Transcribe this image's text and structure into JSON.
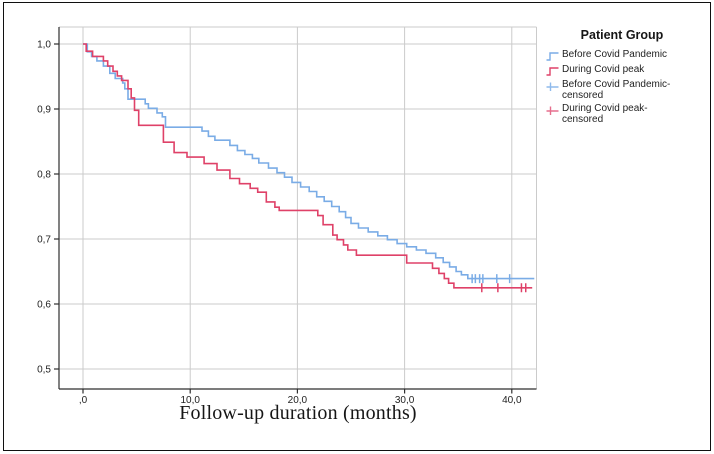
{
  "figure": {
    "kind": "kaplan-meier-survival-plot"
  },
  "legend": {
    "title": "Patient Group",
    "items": [
      {
        "id": "before-covid-pandemic",
        "label": "Before Covid Pandemic",
        "marker": "step-line",
        "color": "#7AACE6"
      },
      {
        "id": "during-covid-peak",
        "label": "During Covid peak",
        "marker": "step-line",
        "color": "#DF4168"
      },
      {
        "id": "before-covid-pandemic-censored",
        "label": "Before Covid Pandemic-censored",
        "marker": "plus",
        "color": "#8FBAEC"
      },
      {
        "id": "during-covid-peak-censored",
        "label": "During Covid peak-censored",
        "marker": "plus",
        "color": "#E66E8D"
      }
    ]
  },
  "chart_data": {
    "type": "line",
    "subtype": "kaplan-meier-step",
    "title": "",
    "xlabel": "Follow-up duration (months)",
    "ylabel": "",
    "xlim": [
      -2.2,
      42.4
    ],
    "ylim": [
      0.47,
      1.03
    ],
    "grid": true,
    "legend_position": "right",
    "x_ticks": [
      0,
      10,
      20,
      30,
      40
    ],
    "x_tick_labels": [
      ",0",
      "10,0",
      "20,0",
      "30,0",
      "40,0"
    ],
    "y_ticks": [
      1.0,
      0.9,
      0.8,
      0.7,
      0.6,
      0.5
    ],
    "y_tick_labels": [
      "1,0",
      "0,9",
      "0,8",
      "0,7",
      "0,6",
      "0,5"
    ],
    "colors": {
      "grid": "#CBCBCB",
      "axis": "#2E2E2E",
      "tick_text": "#232323"
    },
    "series": [
      {
        "id": "before-covid-pandemic",
        "name": "Before Covid Pandemic",
        "color": "#7AACE6",
        "end_x": 42.1,
        "points": [
          [
            0,
            1.0
          ],
          [
            0.4,
            0.988
          ],
          [
            0.8,
            0.981
          ],
          [
            1.3,
            0.974
          ],
          [
            1.9,
            0.966
          ],
          [
            2.5,
            0.955
          ],
          [
            3.0,
            0.947
          ],
          [
            3.7,
            0.94
          ],
          [
            3.9,
            0.931
          ],
          [
            4.2,
            0.915
          ],
          [
            5.8,
            0.908
          ],
          [
            6.1,
            0.901
          ],
          [
            6.9,
            0.894
          ],
          [
            7.4,
            0.888
          ],
          [
            7.7,
            0.872
          ],
          [
            11.1,
            0.866
          ],
          [
            11.7,
            0.858
          ],
          [
            12.3,
            0.852
          ],
          [
            13.7,
            0.844
          ],
          [
            14.4,
            0.836
          ],
          [
            15.1,
            0.83
          ],
          [
            15.8,
            0.824
          ],
          [
            16.4,
            0.817
          ],
          [
            17.3,
            0.809
          ],
          [
            18.1,
            0.802
          ],
          [
            18.8,
            0.795
          ],
          [
            19.5,
            0.787
          ],
          [
            20.3,
            0.78
          ],
          [
            21.1,
            0.773
          ],
          [
            21.8,
            0.765
          ],
          [
            22.5,
            0.758
          ],
          [
            23.2,
            0.75
          ],
          [
            23.9,
            0.742
          ],
          [
            24.5,
            0.733
          ],
          [
            25.0,
            0.724
          ],
          [
            25.7,
            0.717
          ],
          [
            26.6,
            0.711
          ],
          [
            27.5,
            0.705
          ],
          [
            28.4,
            0.699
          ],
          [
            29.3,
            0.693
          ],
          [
            30.2,
            0.688
          ],
          [
            31.1,
            0.683
          ],
          [
            32.0,
            0.678
          ],
          [
            32.9,
            0.671
          ],
          [
            33.6,
            0.664
          ],
          [
            34.2,
            0.657
          ],
          [
            34.8,
            0.65
          ],
          [
            35.3,
            0.645
          ],
          [
            35.9,
            0.639
          ]
        ],
        "censored": [
          [
            36.3,
            0.639
          ],
          [
            36.6,
            0.639
          ],
          [
            37.0,
            0.639
          ],
          [
            37.3,
            0.639
          ],
          [
            38.6,
            0.639
          ],
          [
            39.8,
            0.639
          ]
        ]
      },
      {
        "id": "during-covid-peak",
        "name": "During Covid peak",
        "color": "#DF4168",
        "end_x": 41.9,
        "points": [
          [
            0,
            1.0
          ],
          [
            0.3,
            0.989
          ],
          [
            0.9,
            0.981
          ],
          [
            1.9,
            0.974
          ],
          [
            2.3,
            0.966
          ],
          [
            2.8,
            0.958
          ],
          [
            3.2,
            0.951
          ],
          [
            3.6,
            0.944
          ],
          [
            4.2,
            0.931
          ],
          [
            4.5,
            0.917
          ],
          [
            4.8,
            0.898
          ],
          [
            5.2,
            0.875
          ],
          [
            7.5,
            0.849
          ],
          [
            8.5,
            0.833
          ],
          [
            9.7,
            0.826
          ],
          [
            11.3,
            0.816
          ],
          [
            12.5,
            0.806
          ],
          [
            13.7,
            0.793
          ],
          [
            14.6,
            0.785
          ],
          [
            15.6,
            0.778
          ],
          [
            16.3,
            0.772
          ],
          [
            17.1,
            0.757
          ],
          [
            17.9,
            0.749
          ],
          [
            18.3,
            0.744
          ],
          [
            21.9,
            0.736
          ],
          [
            22.4,
            0.722
          ],
          [
            23.3,
            0.706
          ],
          [
            23.7,
            0.699
          ],
          [
            24.3,
            0.691
          ],
          [
            24.7,
            0.683
          ],
          [
            25.5,
            0.675
          ],
          [
            30.2,
            0.663
          ],
          [
            32.6,
            0.655
          ],
          [
            33.2,
            0.647
          ],
          [
            33.7,
            0.639
          ],
          [
            34.1,
            0.632
          ],
          [
            34.6,
            0.625
          ]
        ],
        "censored": [
          [
            37.2,
            0.625
          ],
          [
            38.7,
            0.625
          ],
          [
            40.9,
            0.625
          ],
          [
            41.3,
            0.625
          ]
        ]
      }
    ]
  }
}
